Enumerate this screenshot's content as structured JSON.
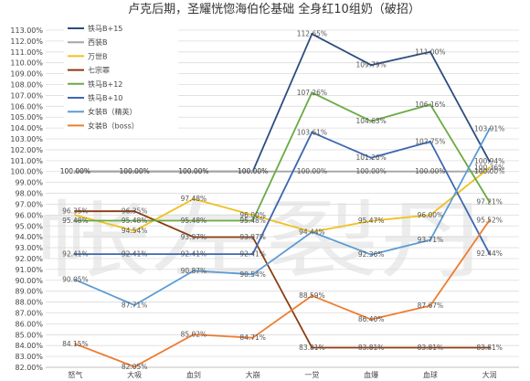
{
  "chart_data": {
    "type": "line",
    "title": "卢克后期，圣耀恍惚海伯伦基础 全身红10组奶（破招）",
    "watermark": "帐左裂丹",
    "categories": [
      "怒气",
      "大吸",
      "血剑",
      "大崩",
      "一觉",
      "血爆",
      "血球",
      "大润"
    ],
    "ylim": [
      82,
      113
    ],
    "ytick_step": 1,
    "yformat": "%",
    "grid": "horizontal",
    "legend_position": "top-left",
    "series": [
      {
        "name": "铁马B+15",
        "color": "#2c4d7e",
        "values": [
          100.0,
          100.0,
          100.0,
          100.0,
          112.65,
          109.79,
          111.0,
          100.94
        ],
        "labels": [
          "100.00%",
          "100.00%",
          "100.00%",
          "100.00%",
          "112.65%",
          "109.79%",
          "111.00%",
          "100.94%"
        ]
      },
      {
        "name": "西装B",
        "color": "#a5a5a5",
        "values": [
          100.0,
          100.0,
          100.0,
          100.0,
          100.0,
          100.0,
          100.0,
          100.0
        ],
        "labels": [
          "100.00%",
          "100.00%",
          "100.00%",
          "100.00%",
          "100.00%",
          "100.00%",
          "100.00%",
          "100.00%"
        ]
      },
      {
        "name": "万世B",
        "color": "#f0c020",
        "values": [
          96.0,
          94.54,
          97.48,
          96.0,
          94.44,
          95.47,
          96.0,
          100.36
        ],
        "labels": [
          "",
          "94.54%",
          "97.48%",
          "96.00%",
          "94.44%",
          "95.47%",
          "96.00%",
          "100.36%"
        ]
      },
      {
        "name": "七宗罪",
        "color": "#8b3a0f",
        "values": [
          96.35,
          96.35,
          93.97,
          93.97,
          83.81,
          83.81,
          83.81,
          83.81
        ],
        "labels": [
          "96.35%",
          "96.35%",
          "93.97%",
          "93.97%",
          "83.81%",
          "83.81%",
          "83.81%",
          "83.81%"
        ]
      },
      {
        "name": "铁马B+12",
        "color": "#6aaa42",
        "values": [
          95.48,
          95.48,
          95.48,
          95.48,
          107.26,
          104.63,
          106.16,
          97.21
        ],
        "labels": [
          "95.48%",
          "95.48%",
          "95.48%",
          "95.48%",
          "107.26%",
          "104.63%",
          "106.16%",
          "97.21%"
        ]
      },
      {
        "name": "铁马B+10",
        "color": "#3d67b1",
        "values": [
          92.41,
          92.41,
          92.41,
          92.41,
          103.61,
          101.26,
          102.75,
          92.44
        ],
        "labels": [
          "92.41%",
          "92.41%",
          "92.41%",
          "92.41%",
          "103.61%",
          "101.26%",
          "102.75%",
          "92.44%"
        ]
      },
      {
        "name": "女装B（精英）",
        "color": "#5b9bd5",
        "values": [
          90.05,
          87.71,
          90.87,
          90.54,
          94.44,
          92.36,
          93.71,
          103.91
        ],
        "labels": [
          "90.05%",
          "87.71%",
          "90.87%",
          "90.54%",
          "",
          "92.36%",
          "93.71%",
          "103.91%"
        ]
      },
      {
        "name": "女装B（boss）",
        "color": "#ed7d31",
        "values": [
          84.15,
          82.05,
          85.02,
          84.71,
          88.59,
          86.4,
          87.67,
          95.52
        ],
        "labels": [
          "84.15%",
          "82.05%",
          "85.02%",
          "84.71%",
          "88.59%",
          "86.40%",
          "87.67%",
          "95.52%"
        ]
      }
    ]
  }
}
